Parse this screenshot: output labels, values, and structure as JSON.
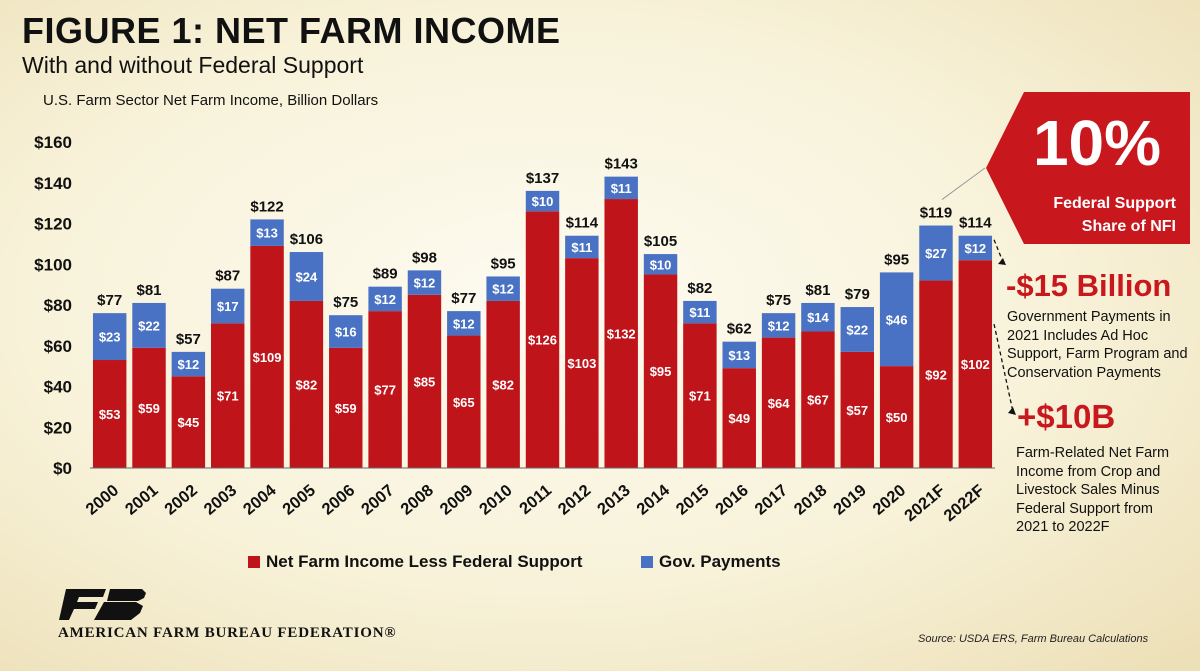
{
  "header": {
    "title": "FIGURE 1: NET FARM INCOME",
    "subtitle": "With and without Federal Support",
    "units": "U.S. Farm Sector Net Farm Income, Billion Dollars"
  },
  "callout": {
    "percent": "10%",
    "label_line1": "Federal Support",
    "label_line2": "Share of NFI"
  },
  "annotation1": {
    "headline": "-$15 Billion",
    "text_lines": [
      "Government Payments in",
      "2021 Includes Ad Hoc",
      "Support, Farm Program and",
      "Conservation Payments"
    ]
  },
  "annotation2": {
    "headline": "+$10B",
    "text_lines": [
      "Farm-Related Net Farm",
      "Income from Crop and",
      "Livestock Sales Minus",
      "Federal Support from",
      "2021 to 2022F"
    ]
  },
  "legend": {
    "series1": "Net Farm Income Less Federal Support",
    "series2": "Gov. Payments"
  },
  "footer": {
    "org": "AMERICAN FARM BUREAU FEDERATION®",
    "source": "Source: USDA ERS, Farm Bureau Calculations"
  },
  "colors": {
    "red": "#c0141b",
    "blue": "#4a72c4",
    "callout": "#c8181e"
  },
  "chart_data": {
    "type": "bar",
    "stacked": true,
    "categories": [
      "2000",
      "2001",
      "2002",
      "2003",
      "2004",
      "2005",
      "2006",
      "2007",
      "2008",
      "2009",
      "2010",
      "2011",
      "2012",
      "2013",
      "2014",
      "2015",
      "2016",
      "2017",
      "2018",
      "2019",
      "2020",
      "2021F",
      "2022F"
    ],
    "series": [
      {
        "name": "Net Farm Income Less Federal Support",
        "color": "#c0141b",
        "values": [
          53,
          59,
          45,
          71,
          109,
          82,
          59,
          77,
          85,
          65,
          82,
          126,
          103,
          132,
          95,
          71,
          49,
          64,
          67,
          57,
          50,
          92,
          102
        ],
        "labels": [
          "$53",
          "$59",
          "$45",
          "$71",
          "$109",
          "$82",
          "$59",
          "$77",
          "$85",
          "$65",
          "$82",
          "$126",
          "$103",
          "$132",
          "$95",
          "$71",
          "$49",
          "$64",
          "$67",
          "$57",
          "$50",
          "$92",
          "$102"
        ]
      },
      {
        "name": "Gov. Payments",
        "color": "#4a72c4",
        "values": [
          23,
          22,
          12,
          17,
          13,
          24,
          16,
          12,
          12,
          12,
          12,
          10,
          11,
          11,
          10,
          11,
          13,
          12,
          14,
          22,
          46,
          27,
          12
        ],
        "labels": [
          "$23",
          "$22",
          "$12",
          "$17",
          "$13",
          "$24",
          "$16",
          "$12",
          "$12",
          "$12",
          "$12",
          "$10",
          "$11",
          "$11",
          "$10",
          "$11",
          "$13",
          "$12",
          "$14",
          "$22",
          "$46",
          "$27",
          "$12"
        ]
      }
    ],
    "totals": [
      77,
      81,
      57,
      87,
      122,
      106,
      75,
      89,
      98,
      77,
      95,
      137,
      114,
      143,
      105,
      82,
      62,
      75,
      81,
      79,
      95,
      119,
      114
    ],
    "total_labels": [
      "$77",
      "$81",
      "$57",
      "$87",
      "$122",
      "$106",
      "$75",
      "$89",
      "$98",
      "$77",
      "$95",
      "$137",
      "$114",
      "$143",
      "$105",
      "$82",
      "$62",
      "$75",
      "$81",
      "$79",
      "$95",
      "$119",
      "$114"
    ],
    "ylim": [
      0,
      160
    ],
    "yticks": [
      0,
      20,
      40,
      60,
      80,
      100,
      120,
      140,
      160
    ],
    "ytick_labels": [
      "$0",
      "$20",
      "$40",
      "$60",
      "$80",
      "$100",
      "$120",
      "$140",
      "$160"
    ],
    "grid": false,
    "legend_position": "bottom"
  }
}
